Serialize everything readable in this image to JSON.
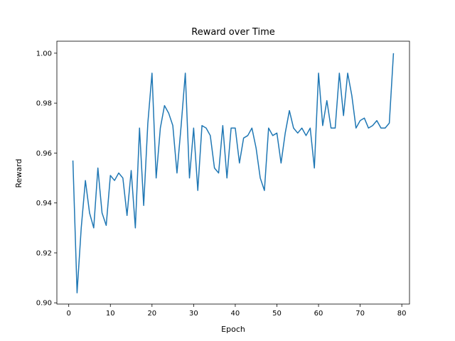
{
  "chart_data": {
    "type": "line",
    "title": "Reward over Time",
    "xlabel": "Epoch",
    "ylabel": "Reward",
    "xlim": [
      -2.85,
      81.85
    ],
    "ylim": [
      0.8995,
      1.0048
    ],
    "xticks": [
      0,
      10,
      20,
      30,
      40,
      50,
      60,
      70,
      80
    ],
    "yticks": [
      0.9,
      0.92,
      0.94,
      0.96,
      0.98,
      1.0
    ],
    "ytick_labels": [
      "0.90",
      "0.92",
      "0.94",
      "0.96",
      "0.98",
      "1.00"
    ],
    "grid": false,
    "line_color": "#1f77b4",
    "series": [
      {
        "x": [
          1,
          2,
          3,
          4,
          5,
          6,
          7,
          8,
          9,
          10,
          11,
          12,
          13,
          14,
          15,
          16,
          17,
          18,
          19,
          20,
          21,
          22,
          23,
          24,
          25,
          26,
          27,
          28,
          29,
          30,
          31,
          32,
          33,
          34,
          35,
          36,
          37,
          38,
          39,
          40,
          41,
          42,
          43,
          44,
          45,
          46,
          47,
          48,
          49,
          50,
          51,
          52,
          53,
          54,
          55,
          56,
          57,
          58,
          59,
          60,
          61,
          62,
          63,
          64,
          65,
          66,
          67,
          68,
          69,
          70,
          71,
          72,
          73,
          74,
          75,
          76,
          77,
          78
        ],
        "y": [
          0.957,
          0.904,
          0.93,
          0.949,
          0.936,
          0.93,
          0.954,
          0.936,
          0.931,
          0.951,
          0.949,
          0.952,
          0.95,
          0.935,
          0.953,
          0.93,
          0.97,
          0.939,
          0.972,
          0.992,
          0.95,
          0.97,
          0.979,
          0.976,
          0.971,
          0.952,
          0.971,
          0.992,
          0.95,
          0.97,
          0.945,
          0.971,
          0.97,
          0.967,
          0.954,
          0.952,
          0.971,
          0.95,
          0.97,
          0.97,
          0.956,
          0.966,
          0.967,
          0.97,
          0.962,
          0.95,
          0.945,
          0.97,
          0.967,
          0.968,
          0.956,
          0.968,
          0.977,
          0.97,
          0.968,
          0.97,
          0.967,
          0.97,
          0.954,
          0.992,
          0.971,
          0.981,
          0.97,
          0.97,
          0.992,
          0.975,
          0.992,
          0.983,
          0.97,
          0.973,
          0.974,
          0.97,
          0.971,
          0.973,
          0.97,
          0.97,
          0.972,
          1.0
        ]
      }
    ]
  }
}
